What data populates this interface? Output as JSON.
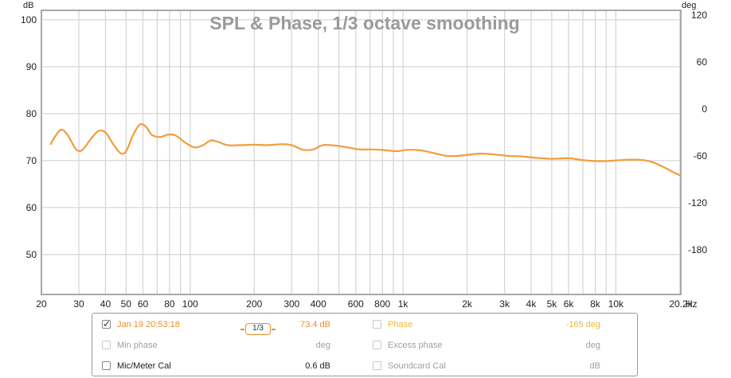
{
  "chart_data": {
    "type": "line",
    "title": "SPL & Phase, 1/3 octave smoothing",
    "y_left_unit": "dB",
    "y_right_unit": "deg",
    "x_unit": "Hz",
    "x_scale": "log",
    "xlim": [
      20,
      20200
    ],
    "ylim_left": [
      41.5,
      102
    ],
    "ylim_right": [
      -237,
      126
    ],
    "x_ticks": [
      {
        "v": 20,
        "label": "20"
      },
      {
        "v": 30,
        "label": "30"
      },
      {
        "v": 40,
        "label": "40"
      },
      {
        "v": 50,
        "label": "50"
      },
      {
        "v": 60,
        "label": "60"
      },
      {
        "v": 80,
        "label": "80"
      },
      {
        "v": 100,
        "label": "100"
      },
      {
        "v": 200,
        "label": "200"
      },
      {
        "v": 300,
        "label": "300"
      },
      {
        "v": 400,
        "label": "400"
      },
      {
        "v": 600,
        "label": "600"
      },
      {
        "v": 800,
        "label": "800"
      },
      {
        "v": 1000,
        "label": "1k"
      },
      {
        "v": 2000,
        "label": "2k"
      },
      {
        "v": 3000,
        "label": "3k"
      },
      {
        "v": 4000,
        "label": "4k"
      },
      {
        "v": 5000,
        "label": "5k"
      },
      {
        "v": 6000,
        "label": "6k"
      },
      {
        "v": 8000,
        "label": "8k"
      },
      {
        "v": 10000,
        "label": "10k"
      },
      {
        "v": 20200,
        "label": "20.2k"
      }
    ],
    "y_left_ticks": [
      50,
      60,
      70,
      80,
      90,
      100
    ],
    "y_right_ticks": [
      -180,
      -120,
      -60,
      0,
      60,
      120
    ],
    "grid": true,
    "series": [
      {
        "name": "Jan 19 20:53:18",
        "color": "#f39c3b",
        "points": [
          [
            22,
            73.4
          ],
          [
            24.5,
            76.5
          ],
          [
            26.5,
            75.5
          ],
          [
            29,
            72.5
          ],
          [
            31,
            72.2
          ],
          [
            34,
            74.5
          ],
          [
            37,
            76.3
          ],
          [
            40,
            76.0
          ],
          [
            43.5,
            73.5
          ],
          [
            47,
            71.6
          ],
          [
            50,
            72.0
          ],
          [
            54,
            75.5
          ],
          [
            58,
            77.7
          ],
          [
            62,
            77.2
          ],
          [
            66,
            75.5
          ],
          [
            72,
            75.0
          ],
          [
            78,
            75.5
          ],
          [
            85,
            75.4
          ],
          [
            95,
            73.8
          ],
          [
            105,
            72.8
          ],
          [
            115,
            73.3
          ],
          [
            125,
            74.3
          ],
          [
            135,
            74.0
          ],
          [
            150,
            73.3
          ],
          [
            175,
            73.3
          ],
          [
            200,
            73.4
          ],
          [
            230,
            73.3
          ],
          [
            270,
            73.5
          ],
          [
            300,
            73.3
          ],
          [
            340,
            72.3
          ],
          [
            380,
            72.4
          ],
          [
            420,
            73.3
          ],
          [
            480,
            73.2
          ],
          [
            550,
            72.8
          ],
          [
            620,
            72.4
          ],
          [
            700,
            72.4
          ],
          [
            780,
            72.3
          ],
          [
            870,
            72.1
          ],
          [
            950,
            72.0
          ],
          [
            1050,
            72.3
          ],
          [
            1200,
            72.2
          ],
          [
            1400,
            71.6
          ],
          [
            1600,
            71.0
          ],
          [
            1800,
            71.0
          ],
          [
            2000,
            71.2
          ],
          [
            2300,
            71.5
          ],
          [
            2700,
            71.3
          ],
          [
            3100,
            71.0
          ],
          [
            3600,
            70.9
          ],
          [
            4200,
            70.6
          ],
          [
            5000,
            70.4
          ],
          [
            6000,
            70.5
          ],
          [
            7000,
            70.1
          ],
          [
            8000,
            69.9
          ],
          [
            9000,
            69.9
          ],
          [
            10500,
            70.1
          ],
          [
            12000,
            70.2
          ],
          [
            13500,
            70.1
          ],
          [
            15000,
            69.6
          ],
          [
            17000,
            68.5
          ],
          [
            18500,
            67.6
          ],
          [
            20200,
            66.8
          ]
        ]
      }
    ]
  },
  "legend": {
    "row1": {
      "label": "Jan 19 20:53:18",
      "checked": "✓",
      "smoothing": "1/3",
      "value": "73.4 dB",
      "phase_label": "Phase",
      "phase_value": "-165 deg"
    },
    "row2": {
      "label": "Min phase",
      "value": "deg",
      "excess_label": "Excess phase",
      "excess_value": "deg"
    },
    "row3": {
      "label": "Mic/Meter Cal",
      "value": "0.6 dB",
      "sc_label": "Soundcard Cal",
      "sc_value": "dB"
    }
  },
  "colors": {
    "spl": "#f39c3b",
    "phase": "#f0b93a",
    "accent": "#e8912d",
    "grid": "#d4d4d4",
    "frame": "#a8a8a8"
  }
}
